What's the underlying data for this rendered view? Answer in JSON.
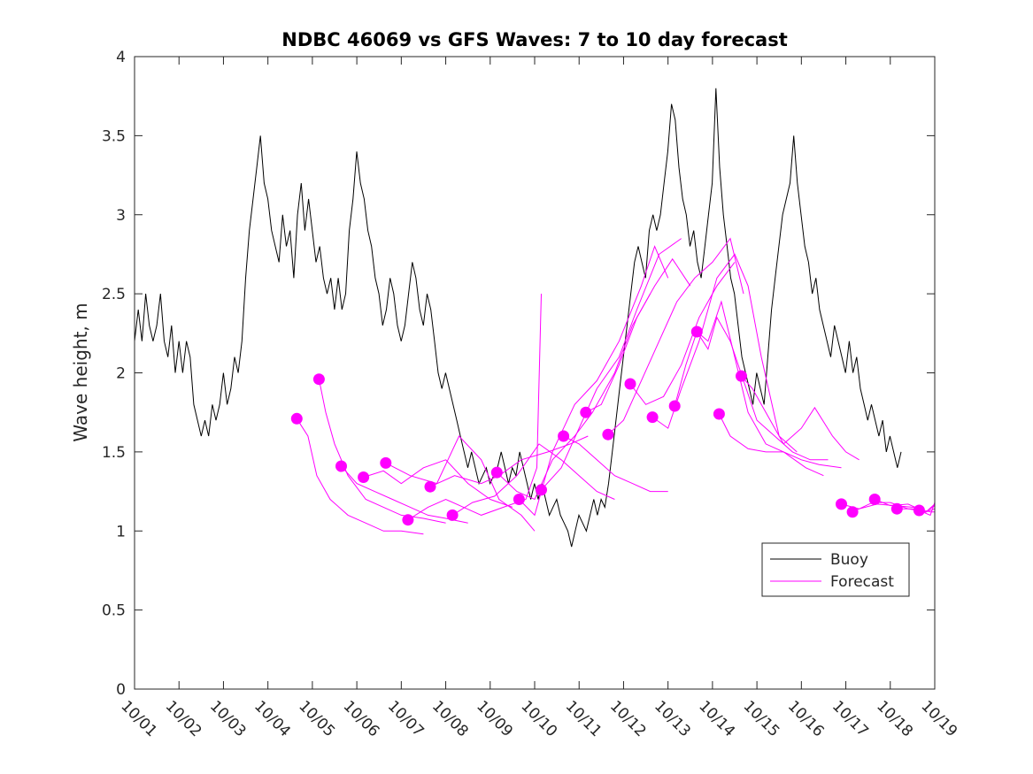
{
  "chart_data": {
    "type": "line",
    "title": "NDBC 46069 vs GFS Waves: 7 to 10 day forecast",
    "xlabel": "",
    "ylabel": "Wave height, m",
    "xlim": [
      0,
      18
    ],
    "ylim": [
      0,
      4
    ],
    "x_tick_labels": [
      "10/01",
      "10/02",
      "10/03",
      "10/04",
      "10/05",
      "10/06",
      "10/07",
      "10/08",
      "10/09",
      "10/10",
      "10/11",
      "10/12",
      "10/13",
      "10/14",
      "10/15",
      "10/16",
      "10/17",
      "10/18",
      "10/19"
    ],
    "y_ticks": [
      0,
      0.5,
      1,
      1.5,
      2,
      2.5,
      3,
      3.5,
      4
    ],
    "y_tick_labels": [
      "0",
      "0.5",
      "1",
      "1.5",
      "2",
      "2.5",
      "3",
      "3.5",
      "4"
    ],
    "grid": false,
    "legend": {
      "position": "lower-right",
      "entries": [
        "Buoy",
        "Forecast"
      ]
    },
    "series": [
      {
        "name": "Buoy",
        "color": "#000000",
        "x_start": 0,
        "x_step": 0.0833,
        "values": [
          2.2,
          2.4,
          2.2,
          2.5,
          2.3,
          2.2,
          2.3,
          2.5,
          2.2,
          2.1,
          2.3,
          2.0,
          2.2,
          2.0,
          2.2,
          2.1,
          1.8,
          1.7,
          1.6,
          1.7,
          1.6,
          1.8,
          1.7,
          1.8,
          2.0,
          1.8,
          1.9,
          2.1,
          2.0,
          2.2,
          2.6,
          2.9,
          3.1,
          3.3,
          3.5,
          3.2,
          3.1,
          2.9,
          2.8,
          2.7,
          3.0,
          2.8,
          2.9,
          2.6,
          3.0,
          3.2,
          2.9,
          3.1,
          2.9,
          2.7,
          2.8,
          2.6,
          2.5,
          2.6,
          2.4,
          2.6,
          2.4,
          2.5,
          2.9,
          3.1,
          3.4,
          3.2,
          3.1,
          2.9,
          2.8,
          2.6,
          2.5,
          2.3,
          2.4,
          2.6,
          2.5,
          2.3,
          2.2,
          2.3,
          2.5,
          2.7,
          2.6,
          2.4,
          2.3,
          2.5,
          2.4,
          2.2,
          2.0,
          1.9,
          2.0,
          1.9,
          1.8,
          1.7,
          1.6,
          1.5,
          1.4,
          1.5,
          1.4,
          1.3,
          1.35,
          1.4,
          1.3,
          1.35,
          1.4,
          1.5,
          1.4,
          1.3,
          1.4,
          1.35,
          1.5,
          1.4,
          1.3,
          1.2,
          1.3,
          1.2,
          1.3,
          1.2,
          1.1,
          1.15,
          1.2,
          1.1,
          1.05,
          1.0,
          0.9,
          1.0,
          1.1,
          1.05,
          1.0,
          1.1,
          1.2,
          1.1,
          1.2,
          1.15,
          1.3,
          1.5,
          1.7,
          1.9,
          2.1,
          2.3,
          2.5,
          2.7,
          2.8,
          2.7,
          2.6,
          2.9,
          3.0,
          2.9,
          3.0,
          3.2,
          3.4,
          3.7,
          3.6,
          3.3,
          3.1,
          3.0,
          2.8,
          2.9,
          2.7,
          2.6,
          2.8,
          3.0,
          3.2,
          3.8,
          3.3,
          3.0,
          2.8,
          2.6,
          2.5,
          2.3,
          2.1,
          2.0,
          1.9,
          1.8,
          2.0,
          1.9,
          1.8,
          2.1,
          2.4,
          2.6,
          2.8,
          3.0,
          3.1,
          3.2,
          3.5,
          3.2,
          3.0,
          2.8,
          2.7,
          2.5,
          2.6,
          2.4,
          2.3,
          2.2,
          2.1,
          2.3,
          2.2,
          2.1,
          2.0,
          2.2,
          2.0,
          2.1,
          1.9,
          1.8,
          1.7,
          1.8,
          1.7,
          1.6,
          1.7,
          1.5,
          1.6,
          1.5,
          1.4,
          1.5
        ]
      },
      {
        "name": "Forecast",
        "color": "#ff00ff",
        "marker_points": [
          {
            "x": 3.65,
            "y": 1.71
          },
          {
            "x": 4.15,
            "y": 1.96
          },
          {
            "x": 4.65,
            "y": 1.41
          },
          {
            "x": 5.15,
            "y": 1.34
          },
          {
            "x": 5.65,
            "y": 1.43
          },
          {
            "x": 6.15,
            "y": 1.07
          },
          {
            "x": 6.65,
            "y": 1.28
          },
          {
            "x": 7.15,
            "y": 1.1
          },
          {
            "x": 8.15,
            "y": 1.37
          },
          {
            "x": 8.65,
            "y": 1.2
          },
          {
            "x": 9.15,
            "y": 1.26
          },
          {
            "x": 9.65,
            "y": 1.6
          },
          {
            "x": 10.15,
            "y": 1.75
          },
          {
            "x": 10.65,
            "y": 1.61
          },
          {
            "x": 11.15,
            "y": 1.93
          },
          {
            "x": 11.65,
            "y": 1.72
          },
          {
            "x": 12.15,
            "y": 1.79
          },
          {
            "x": 12.65,
            "y": 2.26
          },
          {
            "x": 13.15,
            "y": 1.74
          },
          {
            "x": 13.65,
            "y": 1.98
          },
          {
            "x": 15.9,
            "y": 1.17
          },
          {
            "x": 16.15,
            "y": 1.12
          },
          {
            "x": 16.65,
            "y": 1.2
          },
          {
            "x": 17.15,
            "y": 1.14
          },
          {
            "x": 17.65,
            "y": 1.13
          }
        ],
        "lines": [
          [
            [
              3.65,
              1.71
            ],
            [
              3.9,
              1.6
            ],
            [
              4.1,
              1.35
            ],
            [
              4.4,
              1.2
            ],
            [
              4.8,
              1.1
            ],
            [
              5.2,
              1.05
            ],
            [
              5.6,
              1.0
            ],
            [
              6.0,
              1.0
            ],
            [
              6.5,
              0.98
            ]
          ],
          [
            [
              4.15,
              1.96
            ],
            [
              4.3,
              1.75
            ],
            [
              4.5,
              1.55
            ],
            [
              4.8,
              1.35
            ],
            [
              5.2,
              1.2
            ],
            [
              5.6,
              1.15
            ],
            [
              6.0,
              1.1
            ],
            [
              6.5,
              1.08
            ],
            [
              7.0,
              1.05
            ]
          ],
          [
            [
              4.65,
              1.41
            ],
            [
              5.0,
              1.3
            ],
            [
              5.4,
              1.25
            ],
            [
              5.8,
              1.2
            ],
            [
              6.2,
              1.15
            ],
            [
              6.6,
              1.1
            ],
            [
              7.0,
              1.08
            ],
            [
              7.5,
              1.05
            ]
          ],
          [
            [
              5.15,
              1.34
            ],
            [
              5.6,
              1.38
            ],
            [
              6.0,
              1.3
            ],
            [
              6.5,
              1.4
            ],
            [
              7.0,
              1.45
            ],
            [
              7.5,
              1.3
            ],
            [
              8.0,
              1.2
            ],
            [
              8.5,
              1.15
            ]
          ],
          [
            [
              5.65,
              1.43
            ],
            [
              6.2,
              1.35
            ],
            [
              6.8,
              1.3
            ],
            [
              7.3,
              1.6
            ],
            [
              7.8,
              1.45
            ],
            [
              8.2,
              1.2
            ],
            [
              8.7,
              1.1
            ],
            [
              9.0,
              1.0
            ]
          ],
          [
            [
              6.15,
              1.07
            ],
            [
              6.6,
              1.15
            ],
            [
              7.0,
              1.2
            ],
            [
              7.4,
              1.15
            ],
            [
              7.8,
              1.1
            ],
            [
              8.3,
              1.15
            ],
            [
              8.8,
              1.2
            ],
            [
              9.05,
              1.4
            ],
            [
              9.15,
              2.5
            ]
          ],
          [
            [
              6.65,
              1.28
            ],
            [
              7.2,
              1.35
            ],
            [
              7.8,
              1.3
            ],
            [
              8.2,
              1.35
            ],
            [
              8.7,
              1.45
            ],
            [
              9.3,
              1.5
            ],
            [
              9.8,
              1.55
            ],
            [
              10.2,
              1.6
            ]
          ],
          [
            [
              7.15,
              1.1
            ],
            [
              7.6,
              1.18
            ],
            [
              8.1,
              1.22
            ],
            [
              8.6,
              1.35
            ],
            [
              9.1,
              1.55
            ],
            [
              9.6,
              1.45
            ],
            [
              10.0,
              1.35
            ],
            [
              10.4,
              1.25
            ],
            [
              10.8,
              1.2
            ]
          ],
          [
            [
              8.15,
              1.37
            ],
            [
              8.6,
              1.25
            ],
            [
              9.0,
              1.2
            ],
            [
              9.4,
              1.45
            ],
            [
              9.9,
              1.6
            ],
            [
              10.3,
              1.75
            ],
            [
              10.8,
              2.0
            ],
            [
              11.2,
              2.3
            ],
            [
              11.6,
              2.5
            ]
          ],
          [
            [
              8.65,
              1.2
            ],
            [
              9.0,
              1.1
            ],
            [
              9.4,
              1.5
            ],
            [
              9.9,
              1.8
            ],
            [
              10.4,
              1.95
            ],
            [
              10.9,
              2.2
            ],
            [
              11.4,
              2.55
            ],
            [
              11.7,
              2.8
            ],
            [
              12.0,
              2.6
            ]
          ],
          [
            [
              9.15,
              1.26
            ],
            [
              9.6,
              1.4
            ],
            [
              10.0,
              1.65
            ],
            [
              10.4,
              1.9
            ],
            [
              10.9,
              2.1
            ],
            [
              11.3,
              2.4
            ],
            [
              11.8,
              2.75
            ],
            [
              12.3,
              2.85
            ]
          ],
          [
            [
              9.65,
              1.6
            ],
            [
              10.0,
              1.55
            ],
            [
              10.4,
              1.45
            ],
            [
              10.8,
              1.35
            ],
            [
              11.2,
              1.3
            ],
            [
              11.6,
              1.25
            ],
            [
              12.0,
              1.25
            ]
          ],
          [
            [
              10.15,
              1.75
            ],
            [
              10.5,
              1.8
            ],
            [
              10.9,
              2.05
            ],
            [
              11.3,
              2.35
            ],
            [
              11.7,
              2.55
            ],
            [
              12.1,
              2.72
            ],
            [
              12.5,
              2.55
            ]
          ],
          [
            [
              10.65,
              1.61
            ],
            [
              11.0,
              1.7
            ],
            [
              11.4,
              1.95
            ],
            [
              11.8,
              2.2
            ],
            [
              12.2,
              2.45
            ],
            [
              12.6,
              2.6
            ],
            [
              13.0,
              2.7
            ],
            [
              13.4,
              2.85
            ],
            [
              13.7,
              2.5
            ]
          ],
          [
            [
              11.15,
              1.93
            ],
            [
              11.5,
              1.8
            ],
            [
              11.9,
              1.85
            ],
            [
              12.3,
              2.05
            ],
            [
              12.7,
              2.35
            ],
            [
              13.1,
              2.55
            ],
            [
              13.5,
              2.7
            ]
          ],
          [
            [
              11.65,
              1.72
            ],
            [
              12.0,
              1.65
            ],
            [
              12.3,
              1.9
            ],
            [
              12.7,
              2.2
            ],
            [
              13.1,
              2.6
            ],
            [
              13.5,
              2.75
            ],
            [
              13.8,
              2.55
            ],
            [
              14.1,
              2.1
            ],
            [
              14.5,
              1.6
            ],
            [
              14.9,
              1.5
            ]
          ],
          [
            [
              12.15,
              1.79
            ],
            [
              12.4,
              2.05
            ],
            [
              12.65,
              2.26
            ],
            [
              12.9,
              2.2
            ],
            [
              13.2,
              2.45
            ],
            [
              13.5,
              2.1
            ],
            [
              13.8,
              1.75
            ],
            [
              14.2,
              1.55
            ],
            [
              14.6,
              1.5
            ],
            [
              15.1,
              1.4
            ],
            [
              15.5,
              1.35
            ]
          ],
          [
            [
              12.65,
              2.26
            ],
            [
              12.9,
              2.15
            ],
            [
              13.1,
              2.35
            ],
            [
              13.4,
              2.2
            ],
            [
              13.7,
              1.95
            ],
            [
              14.0,
              1.7
            ],
            [
              14.4,
              1.6
            ],
            [
              14.8,
              1.5
            ],
            [
              15.2,
              1.45
            ],
            [
              15.6,
              1.45
            ]
          ],
          [
            [
              13.15,
              1.74
            ],
            [
              13.4,
              1.6
            ],
            [
              13.8,
              1.52
            ],
            [
              14.2,
              1.5
            ],
            [
              14.6,
              1.5
            ],
            [
              15.0,
              1.45
            ],
            [
              15.4,
              1.42
            ],
            [
              15.9,
              1.4
            ]
          ],
          [
            [
              13.65,
              1.98
            ],
            [
              13.9,
              1.9
            ],
            [
              14.2,
              1.75
            ],
            [
              14.6,
              1.55
            ],
            [
              15.0,
              1.65
            ],
            [
              15.3,
              1.78
            ],
            [
              15.7,
              1.6
            ],
            [
              16.0,
              1.5
            ],
            [
              16.3,
              1.45
            ]
          ],
          [
            [
              15.9,
              1.17
            ],
            [
              16.3,
              1.14
            ],
            [
              16.7,
              1.17
            ],
            [
              17.1,
              1.16
            ],
            [
              17.5,
              1.15
            ],
            [
              17.9,
              1.12
            ],
            [
              18.0,
              1.12
            ]
          ],
          [
            [
              16.15,
              1.12
            ],
            [
              16.6,
              1.18
            ],
            [
              17.0,
              1.18
            ],
            [
              17.4,
              1.14
            ],
            [
              17.8,
              1.12
            ],
            [
              18.0,
              1.16
            ]
          ],
          [
            [
              16.65,
              1.2
            ],
            [
              17.0,
              1.16
            ],
            [
              17.4,
              1.17
            ],
            [
              17.8,
              1.12
            ],
            [
              18.0,
              1.14
            ]
          ],
          [
            [
              17.15,
              1.14
            ],
            [
              17.5,
              1.14
            ],
            [
              17.8,
              1.12
            ],
            [
              18.0,
              1.17
            ]
          ],
          [
            [
              17.65,
              1.13
            ],
            [
              17.9,
              1.1
            ],
            [
              18.0,
              1.18
            ]
          ]
        ]
      }
    ]
  }
}
